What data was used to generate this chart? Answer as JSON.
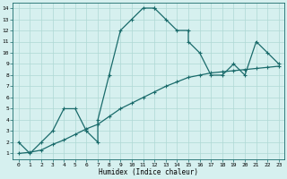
{
  "xlabel": "Humidex (Indice chaleur)",
  "bg_color": "#d6f0ef",
  "grid_color": "#afd8d4",
  "line_color": "#1a6b6b",
  "xlim": [
    -0.5,
    23.5
  ],
  "ylim": [
    0.5,
    14.5
  ],
  "xticks": [
    0,
    1,
    2,
    3,
    4,
    5,
    6,
    7,
    8,
    9,
    10,
    11,
    12,
    13,
    14,
    15,
    16,
    17,
    18,
    19,
    20,
    21,
    22,
    23
  ],
  "yticks": [
    1,
    2,
    3,
    4,
    5,
    6,
    7,
    8,
    9,
    10,
    11,
    12,
    13,
    14
  ],
  "line1_x": [
    0,
    1,
    2,
    3,
    4,
    5,
    6,
    6,
    7,
    7,
    8,
    9,
    10,
    11,
    12,
    12,
    13,
    14,
    15,
    15,
    16,
    17,
    18,
    19,
    20,
    21,
    22,
    23
  ],
  "line1_y": [
    2,
    1,
    2,
    3,
    5,
    5,
    3,
    3,
    2,
    4,
    8,
    12,
    13,
    14,
    14,
    14,
    13,
    12,
    12,
    11,
    10,
    8,
    8,
    9,
    8,
    11,
    10,
    9
  ],
  "line2_x": [
    0,
    1,
    2,
    3,
    4,
    5,
    6,
    7,
    8,
    9,
    10,
    11,
    12,
    13,
    14,
    15,
    16,
    17,
    18,
    19,
    20,
    21,
    22,
    23
  ],
  "line2_y": [
    1.0,
    1.1,
    1.3,
    1.8,
    2.2,
    2.7,
    3.2,
    3.6,
    4.3,
    5.0,
    5.5,
    6.0,
    6.5,
    7.0,
    7.4,
    7.8,
    8.0,
    8.2,
    8.3,
    8.4,
    8.5,
    8.6,
    8.7,
    8.8
  ],
  "markersize": 2.5,
  "linewidth": 0.9
}
